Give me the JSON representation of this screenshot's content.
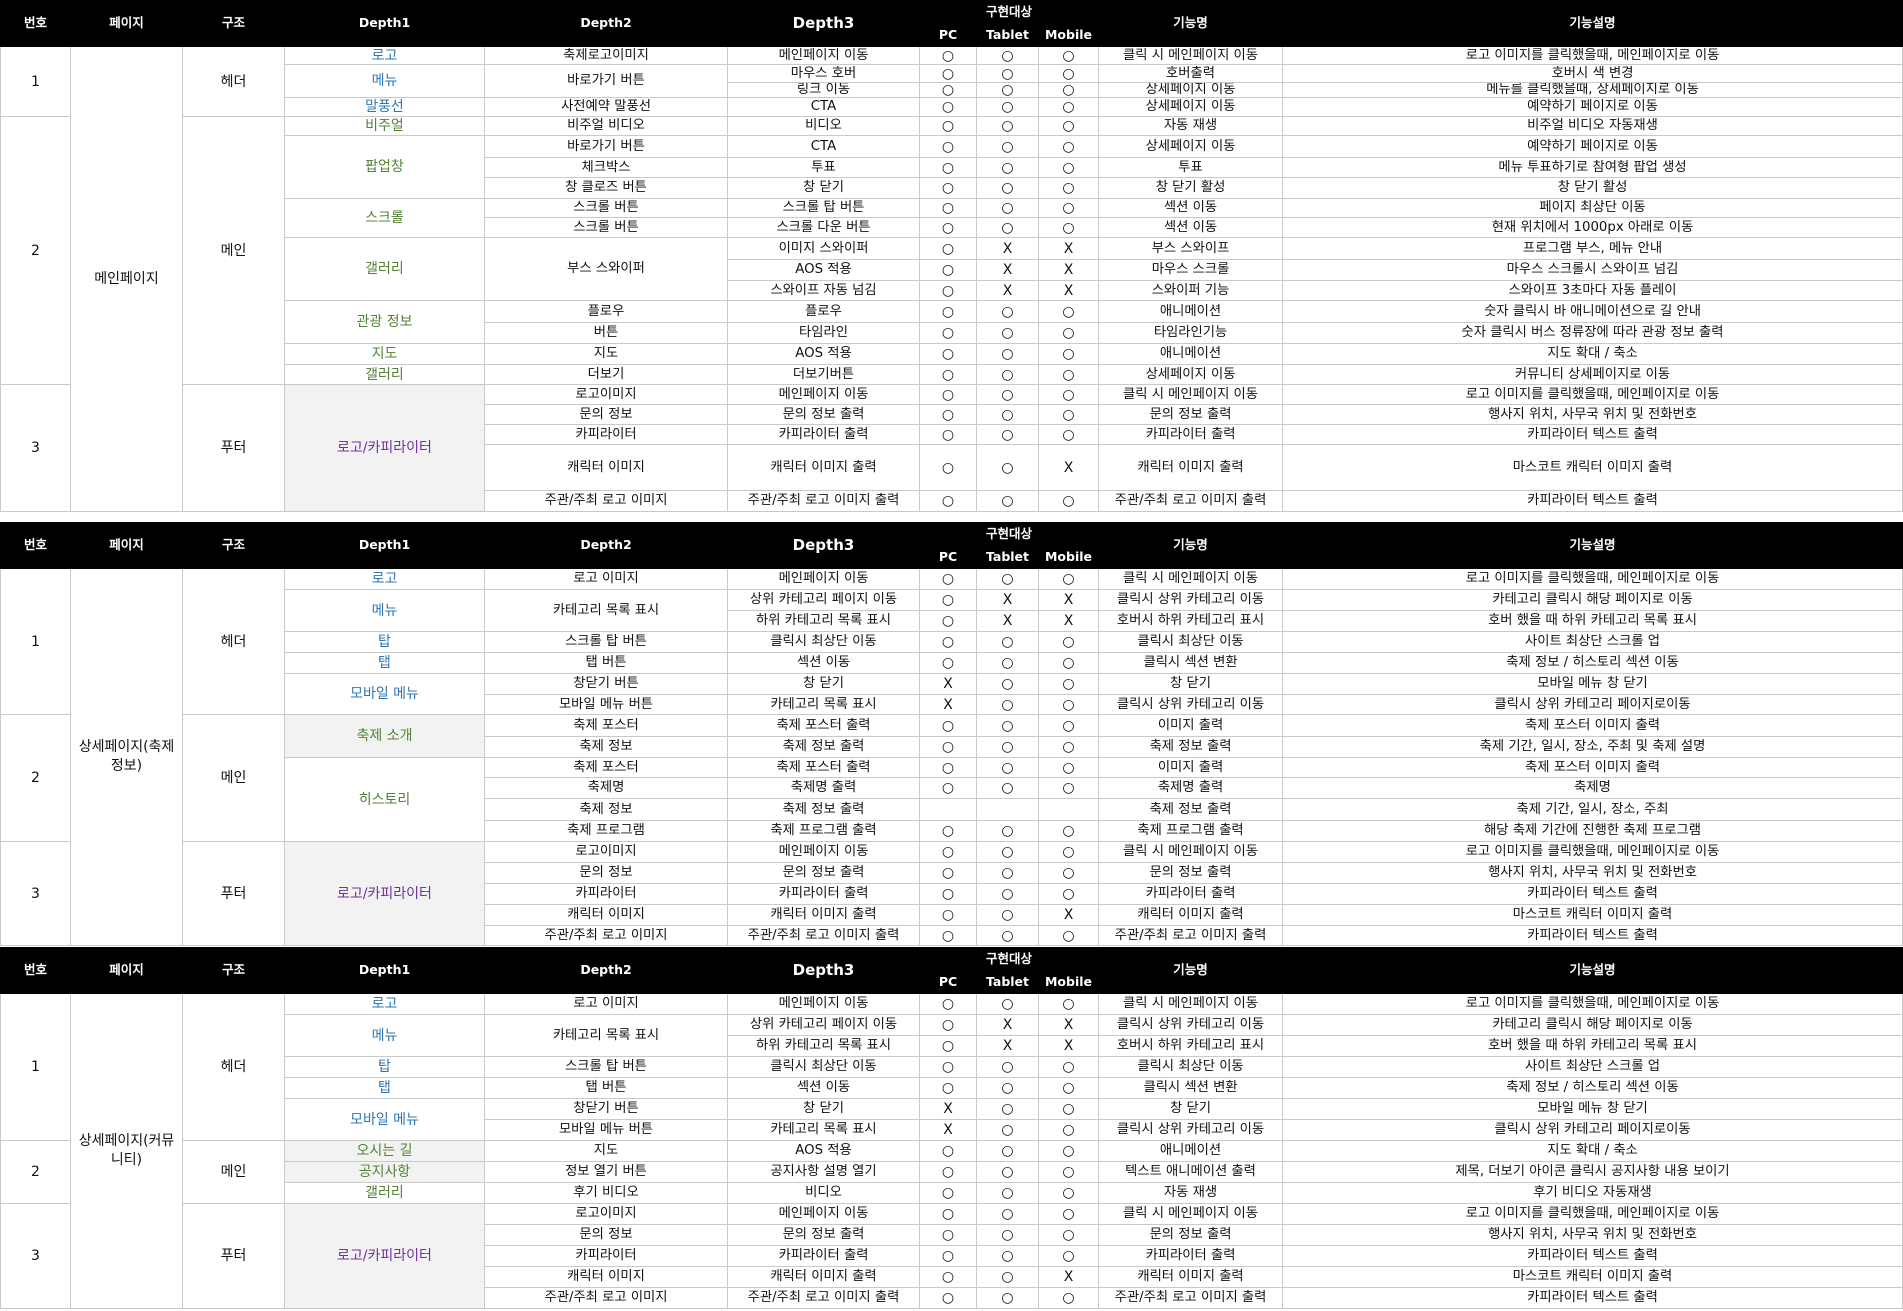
{
  "headers": {
    "no": "번호",
    "page": "페이지",
    "structure": "구조",
    "depth1": "Depth1",
    "depth2": "Depth2",
    "depth3": "Depth3",
    "target": "구현대상",
    "pc": "PC",
    "tablet": "Tablet",
    "mobile": "Mobile",
    "function": "기능명",
    "description": "기능설명"
  },
  "sections": [
    {
      "page": "메인페이지",
      "groups": [
        {
          "no": "1",
          "structure": "헤더",
          "d1": [
            {
              "label": "로고",
              "color": "#2e75b6",
              "span": 1
            },
            {
              "label": "메뉴",
              "color": "#2e75b6",
              "span": 2
            },
            {
              "label": "말풍선",
              "color": "#2e75b6",
              "span": 1
            }
          ],
          "rows": [
            {
              "d2": "축제로고이미지",
              "d3": "메인페이지 이동",
              "pc": "○",
              "tab": "○",
              "mob": "○",
              "fn": "클릭 시 메인페이지 이동",
              "desc": "로고 이미지를 클릭했을때, 메인페이지로 이동"
            },
            {
              "d2": "바로가기 버튼",
              "d2span": 2,
              "d3": "마우스 호버",
              "pc": "○",
              "tab": "○",
              "mob": "○",
              "fn": "호버출력",
              "desc": "호버시 색 변경"
            },
            {
              "d3": "링크 이동",
              "pc": "○",
              "tab": "○",
              "mob": "○",
              "fn": "상세페이지 이동",
              "desc": "메뉴를 클릭했을때, 상세페이지로 이동"
            },
            {
              "d2": "사전예약 말풍선",
              "d3": "CTA",
              "pc": "○",
              "tab": "○",
              "mob": "○",
              "fn": "상세페이지 이동",
              "desc": "예약하기 페이지로 이동"
            }
          ]
        },
        {
          "no": "2",
          "structure": "메인",
          "d1": [
            {
              "label": "비주얼",
              "color": "#548235",
              "span": 1
            },
            {
              "label": "팝업창",
              "color": "#548235",
              "span": 3
            },
            {
              "label": "스크롤",
              "color": "#548235",
              "span": 2
            },
            {
              "label": "갤러리",
              "color": "#548235",
              "span": 3
            },
            {
              "label": "관광 정보",
              "color": "#548235",
              "span": 2
            },
            {
              "label": "지도",
              "color": "#548235",
              "span": 1
            },
            {
              "label": "갤러리",
              "color": "#548235",
              "span": 1
            }
          ],
          "rows": [
            {
              "d2": "비주얼 비디오",
              "d3": "비디오",
              "pc": "○",
              "tab": "○",
              "mob": "○",
              "fn": "자동 재생",
              "desc": "비주얼 비디오 자동재생"
            },
            {
              "d2": "바로가기 버튼",
              "d3": "CTA",
              "pc": "○",
              "tab": "○",
              "mob": "○",
              "fn": "상세페이지 이동",
              "desc": "예약하기 페이지로 이동"
            },
            {
              "d2": "체크박스",
              "d3": "투표",
              "pc": "○",
              "tab": "○",
              "mob": "○",
              "fn": "투표",
              "desc": "메뉴 투표하기로 참여형 팝업 생성"
            },
            {
              "d2": "창 클로즈 버튼",
              "d3": "창 닫기",
              "pc": "○",
              "tab": "○",
              "mob": "○",
              "fn": "창 닫기 활성",
              "desc": "창 닫기 활성"
            },
            {
              "d2": "스크롤 버튼",
              "d3": "스크롤 탑 버튼",
              "pc": "○",
              "tab": "○",
              "mob": "○",
              "fn": "섹션 이동",
              "desc": "페이지 최상단 이동"
            },
            {
              "d2": "스크롤 버튼",
              "d3": "스크롤 다운 버튼",
              "pc": "○",
              "tab": "○",
              "mob": "○",
              "fn": "섹션 이동",
              "desc": "현재 위치에서 1000px 아래로 이동"
            },
            {
              "d2": "부스 스와이퍼",
              "d2span": 3,
              "d3": "이미지 스와이퍼",
              "pc": "○",
              "tab": "X",
              "mob": "X",
              "fn": "부스 스와이프",
              "desc": "프로그램 부스, 메뉴 안내"
            },
            {
              "d3": "AOS 적용",
              "pc": "○",
              "tab": "X",
              "mob": "X",
              "fn": "마우스 스크롤",
              "desc": "마우스 스크롤시 스와이프 넘김"
            },
            {
              "d3": "스와이프 자동 넘김",
              "pc": "○",
              "tab": "X",
              "mob": "X",
              "fn": "스와이퍼 기능",
              "desc": "스와이프 3초마다 자동 플레이"
            },
            {
              "d2": "플로우",
              "d3": "플로우",
              "pc": "○",
              "tab": "○",
              "mob": "○",
              "fn": "애니메이션",
              "desc": "숫자 클릭시 바 애니메이션으로 길 안내"
            },
            {
              "d2": "버튼",
              "d3": "타임라인",
              "pc": "○",
              "tab": "○",
              "mob": "○",
              "fn": "타임라인기능",
              "desc": "숫자 클릭시 버스 정류장에 따라 관광 정보 출력"
            },
            {
              "d2": "지도",
              "d3": "AOS 적용",
              "pc": "○",
              "tab": "○",
              "mob": "○",
              "fn": "애니메이션",
              "desc": "지도 확대 / 축소"
            },
            {
              "d2": "더보기",
              "d3": "더보기버튼",
              "pc": "○",
              "tab": "○",
              "mob": "○",
              "fn": "상세페이지 이동",
              "desc": "커뮤니티 상세페이지로 이동"
            }
          ]
        },
        {
          "no": "3",
          "structure": "푸터",
          "d1": [
            {
              "label": "로고/카피라이터",
              "color": "#7030a0",
              "span": 5
            }
          ],
          "rows": [
            {
              "d2": "로고이미지",
              "d3": "메인페이지 이동",
              "pc": "○",
              "tab": "○",
              "mob": "○",
              "fn": "클릭 시 메인페이지 이동",
              "desc": "로고 이미지를 클릭했을때, 메인페이지로 이동"
            },
            {
              "d2": "문의 정보",
              "d3": "문의 정보 출력",
              "pc": "○",
              "tab": "○",
              "mob": "○",
              "fn": "문의 정보 출력",
              "desc": "행사지 위치, 사무국 위치 및 전화번호"
            },
            {
              "d2": "카피라이터",
              "d3": "카피라이터 출력",
              "pc": "○",
              "tab": "○",
              "mob": "○",
              "fn": "카피라이터 출력",
              "desc": "카피라이터 텍스트 출력"
            },
            {
              "d2": "캐릭터 이미지",
              "d3": "캐릭터 이미지 출력",
              "pc": "○",
              "tab": "○",
              "mob": "X",
              "fn": "캐릭터 이미지 출력",
              "desc": "마스코트 캐릭터 이미지 출력"
            },
            {
              "d2": "주관/주최 로고 이미지",
              "d3": "주관/주최 로고 이미지 출력",
              "pc": "○",
              "tab": "○",
              "mob": "○",
              "fn": "주관/주최 로고 이미지 출력",
              "desc": "카피라이터 텍스트 출력"
            }
          ]
        }
      ]
    },
    {
      "page": "상세페이지(축제 정보)",
      "groups": [
        {
          "no": "1",
          "structure": "헤더",
          "d1": [
            {
              "label": "로고",
              "color": "#2e75b6",
              "span": 1
            },
            {
              "label": "메뉴",
              "color": "#2e75b6",
              "span": 2
            },
            {
              "label": "탑",
              "color": "#2e75b6",
              "span": 1
            },
            {
              "label": "탭",
              "color": "#2e75b6",
              "span": 1
            },
            {
              "label": "모바일 메뉴",
              "color": "#2e75b6",
              "span": 2
            }
          ],
          "rows": [
            {
              "d2": "로고 이미지",
              "d3": "메인페이지 이동",
              "pc": "○",
              "tab": "○",
              "mob": "○",
              "fn": "클릭 시 메인페이지 이동",
              "desc": "로고 이미지를 클릭했을때, 메인페이지로 이동"
            },
            {
              "d2": "카테고리 목록 표시",
              "d2span": 2,
              "d3": "상위 카테고리 페이지 이동",
              "pc": "○",
              "tab": "X",
              "mob": "X",
              "fn": "클릭시 상위 카테고리 이동",
              "desc": "카테고리 클릭시 해당 페이지로 이동"
            },
            {
              "d3": "하위 카테고리 목록 표시",
              "pc": "○",
              "tab": "X",
              "mob": "X",
              "fn": "호버시 하위 카테고리 표시",
              "desc": "호버 했을 때 하위 카테고리 목록 표시"
            },
            {
              "d2": "스크롤 탑 버튼",
              "d3": "클릭시 최상단 이동",
              "pc": "○",
              "tab": "○",
              "mob": "○",
              "fn": "클릭시 최상단 이동",
              "desc": "사이트 최상단 스크롤 업"
            },
            {
              "d2": "탭 버튼",
              "d3": "섹션 이동",
              "pc": "○",
              "tab": "○",
              "mob": "○",
              "fn": "클릭시 섹션 변환",
              "desc": "축제 정보 / 히스토리 섹션 이동"
            },
            {
              "d2": "창닫기 버튼",
              "d3": "창 닫기",
              "pc": "X",
              "tab": "○",
              "mob": "○",
              "fn": "창 닫기",
              "desc": "모바일 메뉴 창 닫기"
            },
            {
              "d2": "모바일 메뉴 버튼",
              "d3": "카테고리 목록 표시",
              "pc": "X",
              "tab": "○",
              "mob": "○",
              "fn": "클릭시 상위 카테고리 이동",
              "desc": "클릭시 상위 카테고리 페이지로이동"
            }
          ]
        },
        {
          "no": "2",
          "structure": "메인",
          "d1": [
            {
              "label": "축제 소개",
              "color": "#548235",
              "span": 2,
              "gray": true
            },
            {
              "label": "히스토리",
              "color": "#548235",
              "span": 4
            }
          ],
          "rows": [
            {
              "d2": "축제 포스터",
              "d3": "축제 포스터 출력",
              "pc": "○",
              "tab": "○",
              "mob": "○",
              "fn": "이미지 출력",
              "desc": "축제 포스터 이미지 출력"
            },
            {
              "d2": "축제 정보",
              "d3": "축제 정보 출력",
              "pc": "○",
              "tab": "○",
              "mob": "○",
              "fn": "축제 정보 출력",
              "desc": "축제 기간, 일시, 장소, 주최 및 축제 설명"
            },
            {
              "d2": "축제 포스터",
              "d3": "축제 포스터 출력",
              "pc": "○",
              "tab": "○",
              "mob": "○",
              "fn": "이미지 출력",
              "desc": "축제 포스터 이미지 출력"
            },
            {
              "d2": "축제명",
              "d3": "축제명 출력",
              "pc": "○",
              "tab": "○",
              "mob": "○",
              "fn": "축제명 출력",
              "desc": "축제명"
            },
            {
              "d2": "축제 정보",
              "d3": "축제 정보 출력",
              "pc": "",
              "tab": "",
              "mob": "",
              "fn": "축제 정보 출력",
              "desc": "축제 기간, 일시, 장소, 주최"
            },
            {
              "d2": "축제 프로그램",
              "d3": "축제 프로그램 출력",
              "pc": "○",
              "tab": "○",
              "mob": "○",
              "fn": "축제 프로그램 출력",
              "desc": "해당 축제 기간에 진행한 축제 프로그램"
            }
          ]
        },
        {
          "no": "3",
          "structure": "푸터",
          "d1": [
            {
              "label": "로고/카피라이터",
              "color": "#7030a0",
              "span": 5
            }
          ],
          "rows": [
            {
              "d2": "로고이미지",
              "d3": "메인페이지 이동",
              "pc": "○",
              "tab": "○",
              "mob": "○",
              "fn": "클릭 시 메인페이지 이동",
              "desc": "로고 이미지를 클릭했을때, 메인페이지로 이동"
            },
            {
              "d2": "문의 정보",
              "d3": "문의 정보 출력",
              "pc": "○",
              "tab": "○",
              "mob": "○",
              "fn": "문의 정보 출력",
              "desc": "행사지 위치, 사무국 위치 및 전화번호"
            },
            {
              "d2": "카피라이터",
              "d3": "카피라이터 출력",
              "pc": "○",
              "tab": "○",
              "mob": "○",
              "fn": "카피라이터 출력",
              "desc": "카피라이터 텍스트 출력"
            },
            {
              "d2": "캐릭터 이미지",
              "d3": "캐릭터 이미지 출력",
              "pc": "○",
              "tab": "○",
              "mob": "X",
              "fn": "캐릭터 이미지 출력",
              "desc": "마스코트 캐릭터 이미지 출력"
            },
            {
              "d2": "주관/주최 로고 이미지",
              "d3": "주관/주최 로고 이미지 출력",
              "pc": "○",
              "tab": "○",
              "mob": "○",
              "fn": "주관/주최 로고 이미지 출력",
              "desc": "카피라이터 텍스트 출력"
            }
          ]
        }
      ]
    },
    {
      "page": "상세페이지(커뮤니티)",
      "groups": [
        {
          "no": "1",
          "structure": "헤더",
          "d1": [
            {
              "label": "로고",
              "color": "#2e75b6",
              "span": 1
            },
            {
              "label": "메뉴",
              "color": "#2e75b6",
              "span": 2
            },
            {
              "label": "탑",
              "color": "#2e75b6",
              "span": 1
            },
            {
              "label": "탭",
              "color": "#2e75b6",
              "span": 1
            },
            {
              "label": "모바일 메뉴",
              "color": "#2e75b6",
              "span": 2
            }
          ],
          "rows": [
            {
              "d2": "로고 이미지",
              "d3": "메인페이지 이동",
              "pc": "○",
              "tab": "○",
              "mob": "○",
              "fn": "클릭 시 메인페이지 이동",
              "desc": "로고 이미지를 클릭했을때, 메인페이지로 이동"
            },
            {
              "d2": "카테고리 목록 표시",
              "d2span": 2,
              "d3": "상위 카테고리 페이지 이동",
              "pc": "○",
              "tab": "X",
              "mob": "X",
              "fn": "클릭시 상위 카테고리 이동",
              "desc": "카테고리 클릭시 해당 페이지로 이동"
            },
            {
              "d3": "하위 카테고리 목록 표시",
              "pc": "○",
              "tab": "X",
              "mob": "X",
              "fn": "호버시 하위 카테고리 표시",
              "desc": "호버 했을 때 하위 카테고리 목록 표시"
            },
            {
              "d2": "스크롤 탑 버튼",
              "d3": "클릭시 최상단 이동",
              "pc": "○",
              "tab": "○",
              "mob": "○",
              "fn": "클릭시 최상단 이동",
              "desc": "사이트 최상단 스크롤 업"
            },
            {
              "d2": "탭 버튼",
              "d3": "섹션 이동",
              "pc": "○",
              "tab": "○",
              "mob": "○",
              "fn": "클릭시 섹션 변환",
              "desc": "축제 정보 / 히스토리 섹션 이동"
            },
            {
              "d2": "창닫기 버튼",
              "d3": "창 닫기",
              "pc": "X",
              "tab": "○",
              "mob": "○",
              "fn": "창 닫기",
              "desc": "모바일 메뉴 창 닫기"
            },
            {
              "d2": "모바일 메뉴 버튼",
              "d3": "카테고리 목록 표시",
              "pc": "X",
              "tab": "○",
              "mob": "○",
              "fn": "클릭시 상위 카테고리 이동",
              "desc": "클릭시 상위 카테고리 페이지로이동"
            }
          ]
        },
        {
          "no": "2",
          "structure": "메인",
          "d1": [
            {
              "label": "오시는 길",
              "color": "#548235",
              "span": 1,
              "gray": true
            },
            {
              "label": "공지사항",
              "color": "#548235",
              "span": 1,
              "gray": true
            },
            {
              "label": "갤러리",
              "color": "#548235",
              "span": 1
            }
          ],
          "rows": [
            {
              "d2": "지도",
              "d3": "AOS 적용",
              "pc": "○",
              "tab": "○",
              "mob": "○",
              "fn": "애니메이션",
              "desc": "지도 확대 / 축소"
            },
            {
              "d2": "정보 열기 버튼",
              "d3": "공지사항 설명 열기",
              "pc": "○",
              "tab": "○",
              "mob": "○",
              "fn": "텍스트 애니메이션 출력",
              "desc": "제목, 더보기 아이콘 클릭시 공지사항 내용 보이기"
            },
            {
              "d2": "후기 비디오",
              "d3": "비디오",
              "pc": "○",
              "tab": "○",
              "mob": "○",
              "fn": "자동 재생",
              "desc": "후기 비디오 자동재생"
            }
          ]
        },
        {
          "no": "3",
          "structure": "푸터",
          "d1": [
            {
              "label": "로고/카피라이터",
              "color": "#7030a0",
              "span": 5
            }
          ],
          "rows": [
            {
              "d2": "로고이미지",
              "d3": "메인페이지 이동",
              "pc": "○",
              "tab": "○",
              "mob": "○",
              "fn": "클릭 시 메인페이지 이동",
              "desc": "로고 이미지를 클릭했을때, 메인페이지로 이동"
            },
            {
              "d2": "문의 정보",
              "d3": "문의 정보 출력",
              "pc": "○",
              "tab": "○",
              "mob": "○",
              "fn": "문의 정보 출력",
              "desc": "행사지 위치, 사무국 위치 및 전화번호"
            },
            {
              "d2": "카피라이터",
              "d3": "카피라이터 출력",
              "pc": "○",
              "tab": "○",
              "mob": "○",
              "fn": "카피라이터 출력",
              "desc": "카피라이터 텍스트 출력"
            },
            {
              "d2": "캐릭터 이미지",
              "d3": "캐릭터 이미지 출력",
              "pc": "○",
              "tab": "○",
              "mob": "X",
              "fn": "캐릭터 이미지 출력",
              "desc": "마스코트 캐릭터 이미지 출력"
            },
            {
              "d2": "주관/주최 로고 이미지",
              "d3": "주관/주최 로고 이미지 출력",
              "pc": "○",
              "tab": "○",
              "mob": "○",
              "fn": "주관/주최 로고 이미지 출력",
              "desc": "카피라이터 텍스트 출력"
            }
          ]
        }
      ]
    }
  ]
}
